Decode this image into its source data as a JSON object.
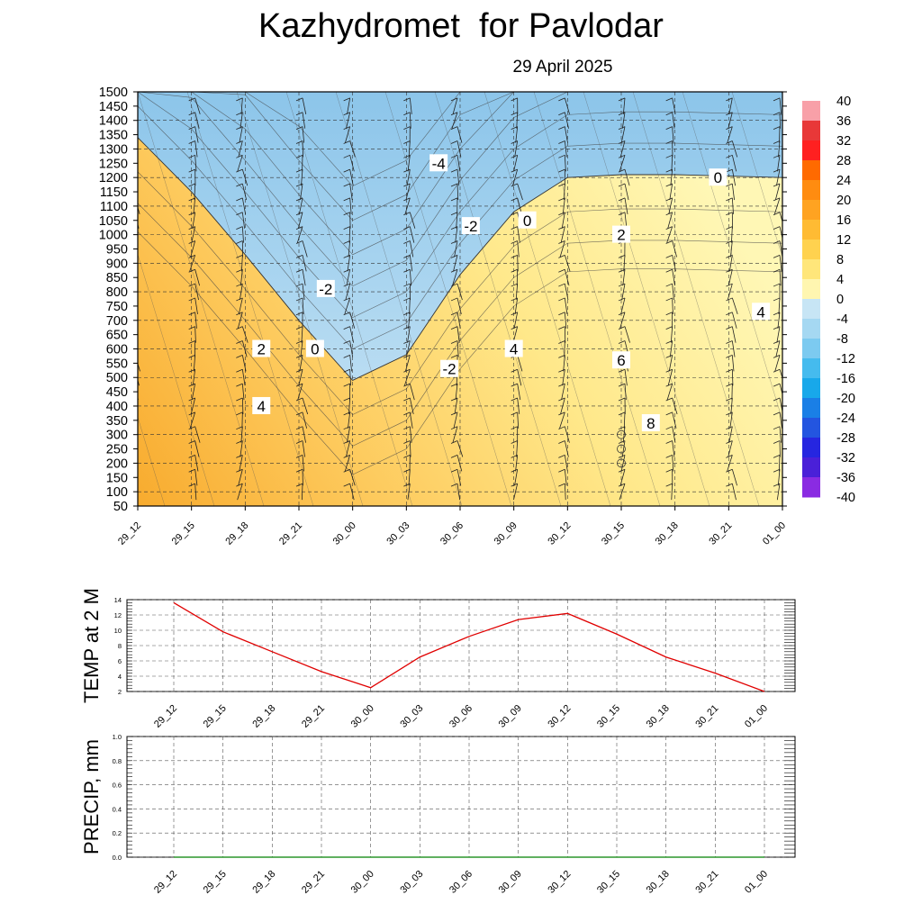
{
  "header": {
    "title": "Kazhydromet  for Pavlodar",
    "subtitle": "29 April 2025"
  },
  "colors": {
    "cold_light": "#cde6f5",
    "cold_mid": "#a6d3ef",
    "cold_deep": "#8cc5ea",
    "warm_light": "#fff7b5",
    "warm_mid": "#ffe88a",
    "warm_deep": "#fdc85a",
    "warm_hot": "#f8ab2e",
    "temp_line": "#e00000",
    "precip_line": "#008000"
  },
  "chart_data": [
    {
      "type": "heatmap",
      "title": "",
      "xlabel": "",
      "ylabel": "",
      "x_categories": [
        "29_12",
        "29_15",
        "29_18",
        "29_21",
        "30_00",
        "30_03",
        "30_06",
        "30_09",
        "30_12",
        "30_15",
        "30_18",
        "30_21",
        "01_00"
      ],
      "y_levels": [
        50,
        100,
        150,
        200,
        250,
        300,
        350,
        400,
        450,
        500,
        550,
        600,
        650,
        700,
        750,
        800,
        850,
        900,
        950,
        1000,
        1050,
        1100,
        1150,
        1200,
        1250,
        1300,
        1350,
        1400,
        1450,
        1500
      ],
      "ylim": [
        50,
        1500
      ],
      "colorbar_levels": [
        40,
        36,
        32,
        28,
        24,
        20,
        16,
        12,
        8,
        4,
        0,
        -4,
        -8,
        -12,
        -16,
        -20,
        -24,
        -28,
        -32,
        -36,
        -40
      ],
      "zero_isotherm": [
        {
          "x": "29_12",
          "y": 1340
        },
        {
          "x": "29_15",
          "y": 1150
        },
        {
          "x": "29_18",
          "y": 930
        },
        {
          "x": "29_21",
          "y": 700
        },
        {
          "x": "30_00",
          "y": 490
        },
        {
          "x": "30_03",
          "y": 580
        },
        {
          "x": "30_06",
          "y": 860
        },
        {
          "x": "30_09",
          "y": 1080
        },
        {
          "x": "30_12",
          "y": 1200
        },
        {
          "x": "30_15",
          "y": 1210
        },
        {
          "x": "30_18",
          "y": 1210
        },
        {
          "x": "30_21",
          "y": 1205
        },
        {
          "x": "01_00",
          "y": 1200
        }
      ],
      "contour_labels": [
        {
          "text": "-4",
          "x": 5.6,
          "y": 1250
        },
        {
          "text": "-2",
          "x": 6.2,
          "y": 1030
        },
        {
          "text": "0",
          "x": 7.25,
          "y": 1050
        },
        {
          "text": "0",
          "x": 10.8,
          "y": 1200
        },
        {
          "text": "2",
          "x": 9.0,
          "y": 1000
        },
        {
          "text": "-2",
          "x": 3.5,
          "y": 810
        },
        {
          "text": "4",
          "x": 11.6,
          "y": 730
        },
        {
          "text": "2",
          "x": 2.3,
          "y": 600
        },
        {
          "text": "0",
          "x": 3.3,
          "y": 600
        },
        {
          "text": "4",
          "x": 7.0,
          "y": 600
        },
        {
          "text": "6",
          "x": 9.0,
          "y": 560
        },
        {
          "text": "-2",
          "x": 5.8,
          "y": 530
        },
        {
          "text": "4",
          "x": 2.3,
          "y": 400
        },
        {
          "text": "8",
          "x": 9.55,
          "y": 340
        }
      ]
    },
    {
      "type": "line",
      "title": "",
      "ylabel": "TEMP at 2 M",
      "categories": [
        "29_12",
        "29_15",
        "29_18",
        "29_21",
        "30_00",
        "30_03",
        "30_06",
        "30_09",
        "30_12",
        "30_15",
        "30_18",
        "30_21",
        "01_00"
      ],
      "series": [
        {
          "values": [
            13.6,
            9.8,
            7.2,
            4.6,
            2.5,
            6.5,
            9.2,
            11.4,
            12.2,
            9.5,
            6.5,
            4.4,
            2.0
          ]
        }
      ],
      "yticks": [
        "2",
        "4",
        "6",
        "8",
        "10",
        "12",
        "14"
      ],
      "ylim": [
        2,
        14
      ],
      "grid": true
    },
    {
      "type": "line",
      "title": "",
      "ylabel": "PRECIP, mm",
      "categories": [
        "29_12",
        "29_15",
        "29_18",
        "29_21",
        "30_00",
        "30_03",
        "30_06",
        "30_09",
        "30_12",
        "30_15",
        "30_18",
        "30_21",
        "01_00"
      ],
      "series": [
        {
          "values": [
            0,
            0,
            0,
            0,
            0,
            0,
            0,
            0,
            0,
            0,
            0,
            0,
            0
          ]
        }
      ],
      "yticks": [
        "0.0",
        "0.2",
        "0.4",
        "0.6",
        "0.8",
        "1.0"
      ],
      "ylim": [
        0,
        1
      ],
      "grid": true
    }
  ]
}
